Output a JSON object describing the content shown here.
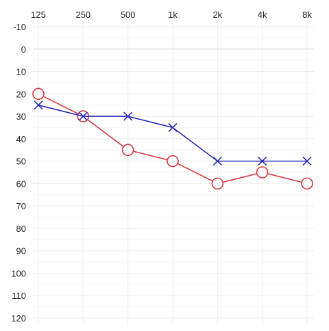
{
  "chart_data": {
    "type": "line",
    "title": "",
    "xlabel": "",
    "ylabel": "",
    "x_axis_position": "top",
    "y_inverted": true,
    "grid": true,
    "categories": [
      "125",
      "250",
      "500",
      "1k",
      "2k",
      "4k",
      "8k"
    ],
    "y_ticks": [
      -10,
      0,
      10,
      20,
      30,
      40,
      50,
      60,
      70,
      80,
      90,
      100,
      110,
      120
    ],
    "ylim": [
      -10,
      120
    ],
    "series": [
      {
        "marker": "circle",
        "color": "#d9363e",
        "values": [
          20,
          30,
          45,
          50,
          60,
          55,
          60
        ]
      },
      {
        "marker": "cross",
        "color": "#2a2ab8",
        "values": [
          25,
          30,
          30,
          35,
          50,
          50,
          50
        ]
      }
    ]
  }
}
